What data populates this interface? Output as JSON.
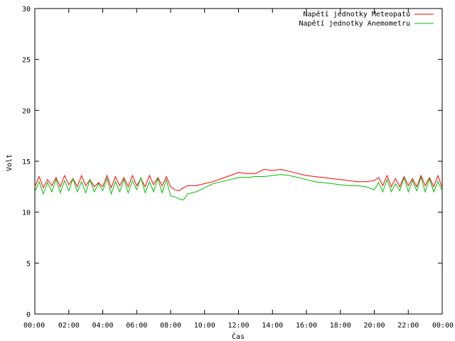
{
  "chart_data": {
    "type": "line",
    "title": "",
    "xlabel": "Čas",
    "ylabel": "Volt",
    "ylim": [
      0,
      30
    ],
    "xlim": [
      0,
      24
    ],
    "grid": false,
    "legend_position": "top-right",
    "x_ticks": [
      "00:00",
      "02:00",
      "04:00",
      "06:00",
      "08:00",
      "10:00",
      "12:00",
      "14:00",
      "16:00",
      "18:00",
      "20:00",
      "22:00",
      "00:00"
    ],
    "y_ticks": [
      "0",
      "5",
      "10",
      "15",
      "20",
      "25",
      "30"
    ],
    "series": [
      {
        "name": "Napětí jednotky Meteopatu",
        "color": "#ff0000",
        "x": [
          0,
          0.25,
          0.5,
          0.75,
          1,
          1.25,
          1.5,
          1.75,
          2,
          2.25,
          2.5,
          2.75,
          3,
          3.25,
          3.5,
          3.75,
          4,
          4.25,
          4.5,
          4.75,
          5,
          5.25,
          5.5,
          5.75,
          6,
          6.25,
          6.5,
          6.75,
          7,
          7.25,
          7.5,
          7.75,
          8,
          8.25,
          8.5,
          8.75,
          9,
          9.25,
          9.5,
          10,
          10.5,
          11,
          11.5,
          12,
          12.5,
          13,
          13.5,
          14,
          14.5,
          15,
          15.5,
          16,
          16.5,
          17,
          17.5,
          18,
          18.5,
          19,
          19.5,
          20,
          20.25,
          20.5,
          20.75,
          21,
          21.25,
          21.5,
          21.75,
          22,
          22.25,
          22.5,
          22.75,
          23,
          23.25,
          23.5,
          23.75,
          24
        ],
        "values": [
          12.5,
          13.5,
          12.4,
          13.2,
          12.6,
          13.4,
          12.5,
          13.6,
          12.7,
          13.3,
          12.5,
          13.6,
          12.6,
          13.2,
          12.5,
          12.9,
          12.5,
          13.6,
          12.4,
          13.5,
          12.6,
          13.4,
          12.5,
          13.6,
          12.6,
          13.3,
          12.5,
          13.6,
          12.7,
          13.4,
          12.6,
          13.5,
          12.5,
          12.2,
          12.1,
          12.4,
          12.6,
          12.6,
          12.6,
          12.8,
          13.0,
          13.3,
          13.6,
          13.9,
          13.8,
          13.8,
          14.2,
          14.1,
          14.2,
          14.0,
          13.8,
          13.6,
          13.5,
          13.4,
          13.3,
          13.2,
          13.1,
          13.0,
          13.0,
          13.1,
          13.4,
          12.6,
          13.6,
          12.5,
          13.3,
          12.5,
          13.5,
          12.6,
          13.3,
          12.5,
          13.6,
          12.6,
          13.4,
          12.5,
          13.6,
          12.4
        ]
      },
      {
        "name": "Napětí jednotky Anemometru",
        "color": "#00c000",
        "x": [
          0,
          0.25,
          0.5,
          0.75,
          1,
          1.25,
          1.5,
          1.75,
          2,
          2.25,
          2.5,
          2.75,
          3,
          3.25,
          3.5,
          3.75,
          4,
          4.25,
          4.5,
          4.75,
          5,
          5.25,
          5.5,
          5.75,
          6,
          6.25,
          6.5,
          6.75,
          7,
          7.25,
          7.5,
          7.75,
          8,
          8.25,
          8.5,
          8.75,
          9,
          9.25,
          9.5,
          10,
          10.5,
          11,
          11.5,
          12,
          12.5,
          13,
          13.5,
          14,
          14.5,
          15,
          15.5,
          16,
          16.5,
          17,
          17.5,
          18,
          18.5,
          19,
          19.5,
          20,
          20.25,
          20.5,
          20.75,
          21,
          21.25,
          21.5,
          21.75,
          22,
          22.25,
          22.5,
          22.75,
          23,
          23.25,
          23.5,
          23.75,
          24
        ],
        "values": [
          12.0,
          13.0,
          11.8,
          12.9,
          12.0,
          13.2,
          11.9,
          13.1,
          12.1,
          13.3,
          12.0,
          13.0,
          11.9,
          13.2,
          12.0,
          12.8,
          12.1,
          13.3,
          11.8,
          13.0,
          12.0,
          13.2,
          11.9,
          13.1,
          12.2,
          13.4,
          11.9,
          13.0,
          12.0,
          13.3,
          11.9,
          13.2,
          11.6,
          11.5,
          11.3,
          11.2,
          11.8,
          11.9,
          12.0,
          12.4,
          12.8,
          13.0,
          13.2,
          13.4,
          13.4,
          13.5,
          13.5,
          13.6,
          13.7,
          13.6,
          13.4,
          13.2,
          13.0,
          12.9,
          12.8,
          12.7,
          12.6,
          12.6,
          12.5,
          12.2,
          12.9,
          12.0,
          13.2,
          12.0,
          12.8,
          12.1,
          13.4,
          12.0,
          13.1,
          12.1,
          13.4,
          12.0,
          13.3,
          12.0,
          13.0,
          12.1
        ]
      }
    ]
  }
}
